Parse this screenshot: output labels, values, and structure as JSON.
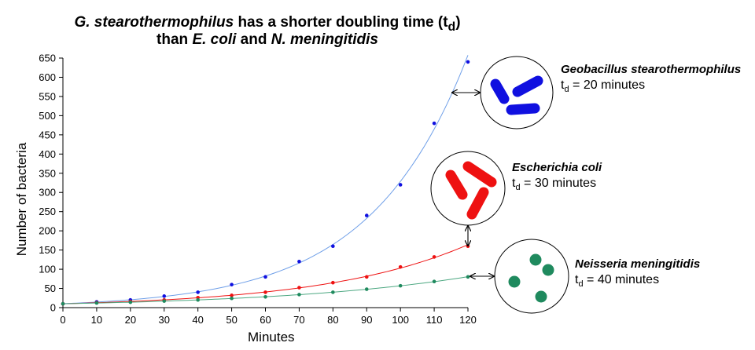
{
  "title": {
    "line1_species": "G. stearothermophilus",
    "line1_text": " has a shorter doubling time (t",
    "line1_sub": "d",
    "line1_end": ")",
    "line2_pre": "than ",
    "line2_species1": "E. coli",
    "line2_mid": " and ",
    "line2_species2": "N. meningitidis"
  },
  "annotations": [
    {
      "name": "Geobacillus stearothermophilus",
      "td_prefix": "t",
      "td_sub": "d",
      "td_value": " = 20 minutes",
      "color": "#1010e0",
      "shape": "rods"
    },
    {
      "name": "Escherichia coli",
      "td_prefix": "t",
      "td_sub": "d",
      "td_value": " = 30 minutes",
      "color": "#ee1111",
      "shape": "rods"
    },
    {
      "name": "Neisseria meningitidis",
      "td_prefix": "t",
      "td_sub": "d",
      "td_value": " = 40 minutes",
      "color": "#1f8a5e",
      "shape": "cocci"
    }
  ],
  "chart_data": {
    "type": "scatter",
    "title": "G. stearothermophilus has a shorter doubling time (td) than E. coli and N. meningitidis",
    "xlabel": "Minutes",
    "ylabel": "Number of bacteria",
    "xlim": [
      0,
      120
    ],
    "ylim": [
      0,
      650
    ],
    "xticks": [
      0,
      10,
      20,
      30,
      40,
      50,
      60,
      70,
      80,
      90,
      100,
      110,
      120
    ],
    "yticks": [
      0,
      50,
      100,
      150,
      200,
      250,
      300,
      350,
      400,
      450,
      500,
      550,
      600,
      650
    ],
    "grid": false,
    "legend": "none",
    "trendline": "exponential",
    "series": [
      {
        "name": "Geobacillus stearothermophilus",
        "color": "#1010e0",
        "line_color": "#6f9fe8",
        "x": [
          0,
          10,
          20,
          30,
          40,
          50,
          60,
          70,
          80,
          90,
          100,
          110,
          120
        ],
        "y": [
          10,
          15,
          20,
          30,
          40,
          60,
          80,
          120,
          160,
          240,
          320,
          480,
          640
        ]
      },
      {
        "name": "Escherichia coli",
        "color": "#ee1111",
        "line_color": "#ee1111",
        "x": [
          0,
          10,
          20,
          30,
          40,
          50,
          60,
          70,
          80,
          90,
          100,
          110,
          120
        ],
        "y": [
          10,
          13,
          16,
          20,
          26,
          32,
          40,
          52,
          65,
          80,
          106,
          132,
          160
        ]
      },
      {
        "name": "Neisseria meningitidis",
        "color": "#1f8a5e",
        "line_color": "#4da882",
        "x": [
          0,
          10,
          20,
          30,
          40,
          50,
          60,
          70,
          80,
          90,
          100,
          110,
          120
        ],
        "y": [
          10,
          12,
          14,
          17,
          20,
          24,
          28,
          34,
          40,
          48,
          57,
          68,
          80
        ]
      }
    ]
  }
}
